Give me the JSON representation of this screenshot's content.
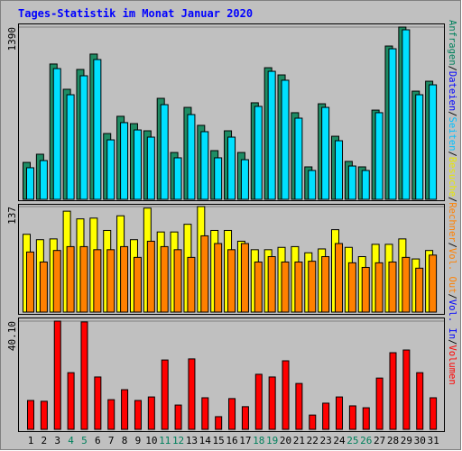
{
  "chart_data": {
    "type": "bar",
    "title": "Tages-Statistik im Monat Januar 2020",
    "categories": [
      "1",
      "2",
      "3",
      "4",
      "5",
      "6",
      "7",
      "8",
      "9",
      "10",
      "11",
      "12",
      "13",
      "14",
      "15",
      "16",
      "17",
      "18",
      "19",
      "20",
      "21",
      "22",
      "23",
      "24",
      "25",
      "26",
      "27",
      "28",
      "29",
      "30",
      "31"
    ],
    "category_colors": [
      "#000000",
      "#000000",
      "#000000",
      "#00805C",
      "#00805C",
      "#000000",
      "#000000",
      "#000000",
      "#000000",
      "#000000",
      "#00805C",
      "#00805C",
      "#000000",
      "#000000",
      "#000000",
      "#000000",
      "#000000",
      "#00805C",
      "#00805C",
      "#000000",
      "#000000",
      "#000000",
      "#000000",
      "#000000",
      "#00805C",
      "#00805C",
      "#000000",
      "#000000",
      "#000000",
      "#000000",
      "#000000"
    ],
    "separator": "/",
    "side_legend": [
      {
        "name": "Anfragen",
        "color": "#00805C"
      },
      {
        "name": "Dateien",
        "color": "#0000FF"
      },
      {
        "name": "Seiten",
        "color": "#00C0FF"
      },
      {
        "name": "Besuche",
        "color": "#E8E800"
      },
      {
        "name": "Rechner",
        "color": "#FF8000"
      },
      {
        "name": "Vol. Out",
        "color": "#FF8000"
      },
      {
        "name": "Vol. In",
        "color": "#0000FF"
      },
      {
        "name": "Volumen",
        "color": "#FF0000"
      }
    ],
    "panels": [
      {
        "ylim": [
          0,
          1390
        ],
        "yticks": [
          1390
        ],
        "series": [
          {
            "color": "#1E8C64",
            "values": [
              298,
              364,
              1092,
              888,
              1048,
              1172,
              531,
              670,
              611,
              553,
              815,
              378,
              742,
              597,
              393,
              553,
              378,
              779,
              1062,
              1004,
              699,
              262,
              771,
              509,
              306,
              262,
              720,
              1237,
              1390,
              873,
              953
            ]
          },
          {
            "color": "#00E0FF",
            "values": [
              255,
              313,
              1055,
              844,
              997,
              1128,
              480,
              619,
              560,
              502,
              764,
              335,
              684,
              546,
              335,
              502,
              320,
              750,
              1033,
              961,
              655,
              233,
              742,
              473,
              269,
              233,
              699,
              1215,
              1368,
              844,
              924
            ]
          }
        ]
      },
      {
        "ylim": [
          0,
          137
        ],
        "yticks": [
          137
        ],
        "series": [
          {
            "color": "#FFFF00",
            "values": [
              101,
              94,
              95,
              131,
              121,
              122,
              106,
              125,
              94,
              135,
              104,
              104,
              114,
              137,
              106,
              106,
              92,
              81,
              81,
              84,
              85,
              77,
              82,
              107,
              84,
              72,
              88,
              88,
              95,
              69,
              80
            ]
          },
          {
            "color": "#FF8000",
            "values": [
              78,
              65,
              80,
              85,
              85,
              81,
              81,
              85,
              71,
              92,
              85,
              81,
              71,
              99,
              89,
              81,
              89,
              65,
              72,
              65,
              65,
              66,
              72,
              89,
              64,
              58,
              64,
              65,
              71,
              57,
              74
            ]
          }
        ]
      },
      {
        "ylim": [
          0,
          40.1
        ],
        "yticks": [
          {
            "value": 40.1,
            "label": "40.10"
          }
        ],
        "series": [
          {
            "color": "#FF0000",
            "values": [
              10.7,
              10.4,
              40.1,
              21.0,
              39.8,
              19.4,
              11.0,
              14.7,
              10.7,
              12.0,
              25.7,
              9.0,
              26.1,
              11.7,
              4.7,
              11.4,
              8.4,
              20.4,
              19.4,
              25.4,
              17.0,
              5.3,
              9.7,
              12.0,
              8.7,
              8.0,
              19.0,
              28.4,
              29.4,
              21.0,
              11.7
            ]
          }
        ]
      }
    ]
  }
}
